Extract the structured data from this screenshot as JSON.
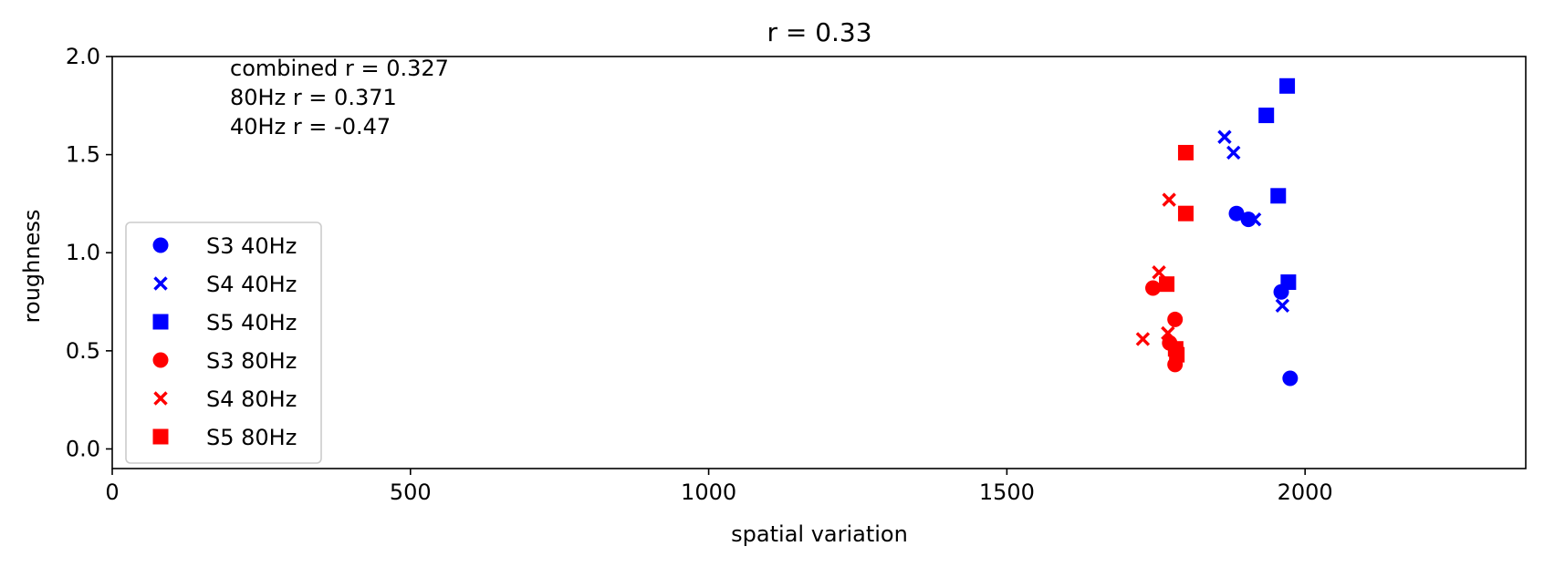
{
  "chart_data": {
    "type": "scatter",
    "title": "r = 0.33",
    "xlabel": "spatial variation",
    "ylabel": "roughness",
    "xlim": [
      0,
      2370
    ],
    "ylim": [
      -0.1,
      2.0
    ],
    "xticks": [
      "0",
      "500",
      "1000",
      "1500",
      "2000"
    ],
    "xtick_values": [
      0,
      500,
      1000,
      1500,
      2000
    ],
    "yticks": [
      "0.0",
      "0.5",
      "1.0",
      "1.5",
      "2.0"
    ],
    "ytick_values": [
      0.0,
      0.5,
      1.0,
      1.5,
      2.0
    ],
    "grid": false,
    "legend_position": "center-left",
    "annotations": [
      "combined r = 0.327",
      "80Hz r = 0.371",
      "40Hz r = -0.47"
    ],
    "series": [
      {
        "name": "S3 40Hz",
        "color": "#0000ff",
        "marker": "circle",
        "points": [
          [
            1885,
            1.2
          ],
          [
            1905,
            1.17
          ],
          [
            1960,
            0.8
          ],
          [
            1975,
            0.36
          ]
        ]
      },
      {
        "name": "S4 40Hz",
        "color": "#0000ff",
        "marker": "x",
        "points": [
          [
            1865,
            1.59
          ],
          [
            1880,
            1.51
          ],
          [
            1915,
            1.17
          ],
          [
            1962,
            0.73
          ]
        ]
      },
      {
        "name": "S5 40Hz",
        "color": "#0000ff",
        "marker": "square",
        "points": [
          [
            1970,
            1.85
          ],
          [
            1935,
            1.7
          ],
          [
            1955,
            1.29
          ],
          [
            1972,
            0.85
          ]
        ]
      },
      {
        "name": "S3 80Hz",
        "color": "#ff0000",
        "marker": "circle",
        "points": [
          [
            1745,
            0.82
          ],
          [
            1782,
            0.66
          ],
          [
            1773,
            0.54
          ],
          [
            1782,
            0.43
          ]
        ]
      },
      {
        "name": "S4 80Hz",
        "color": "#ff0000",
        "marker": "x",
        "points": [
          [
            1772,
            1.27
          ],
          [
            1755,
            0.9
          ],
          [
            1728,
            0.56
          ],
          [
            1770,
            0.59
          ]
        ]
      },
      {
        "name": "S5 80Hz",
        "color": "#ff0000",
        "marker": "square",
        "points": [
          [
            1800,
            1.51
          ],
          [
            1800,
            1.2
          ],
          [
            1768,
            0.84
          ],
          [
            1783,
            0.51
          ],
          [
            1785,
            0.48
          ]
        ]
      }
    ]
  }
}
